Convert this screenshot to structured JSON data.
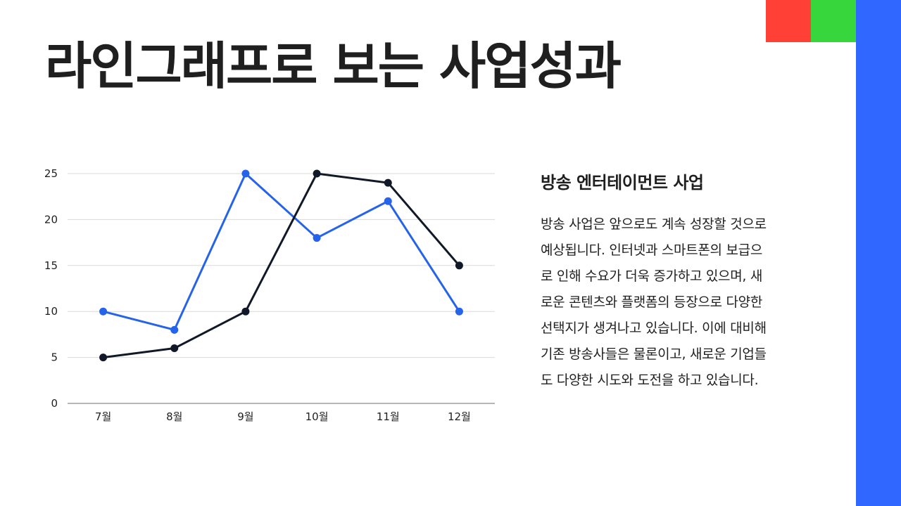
{
  "title": "라인그래프로 보는 사업성과",
  "side": {
    "heading": "방송 엔터테이먼트 사업",
    "body_lines": [
      "방송 사업은 앞으로도 계속 성장할 것으로",
      "예상됩니다. 인터넷과 스마트폰의 보급으",
      "로 인해 수요가 더욱 증가하고 있으며, 새",
      "로운 콘텐츠와 플랫폼의 등장으로 다양한",
      "선택지가 생겨나고 있습니다. 이에 대비해",
      "기존 방송사들은 물론이고, 새로운 기업들",
      "도 다양한 시도와 도전을 하고 있습니다."
    ]
  },
  "colors": {
    "accent_red": "#ff4036",
    "accent_green": "#36d63c",
    "accent_blue": "#2f67ff",
    "series_blue": "#2563eb",
    "series_black": "#111827"
  },
  "chart_data": {
    "type": "line",
    "categories": [
      "7월",
      "8월",
      "9월",
      "10월",
      "11월",
      "12월"
    ],
    "series": [
      {
        "values": [
          10,
          8,
          25,
          18,
          22,
          10
        ],
        "color": "#2563eb"
      },
      {
        "values": [
          5,
          6,
          10,
          25,
          24,
          15
        ],
        "color": "#111827"
      }
    ],
    "yticks": [
      "0",
      "5",
      "10",
      "15",
      "20",
      "25"
    ],
    "ylim": [
      0,
      25
    ],
    "grid": true
  }
}
